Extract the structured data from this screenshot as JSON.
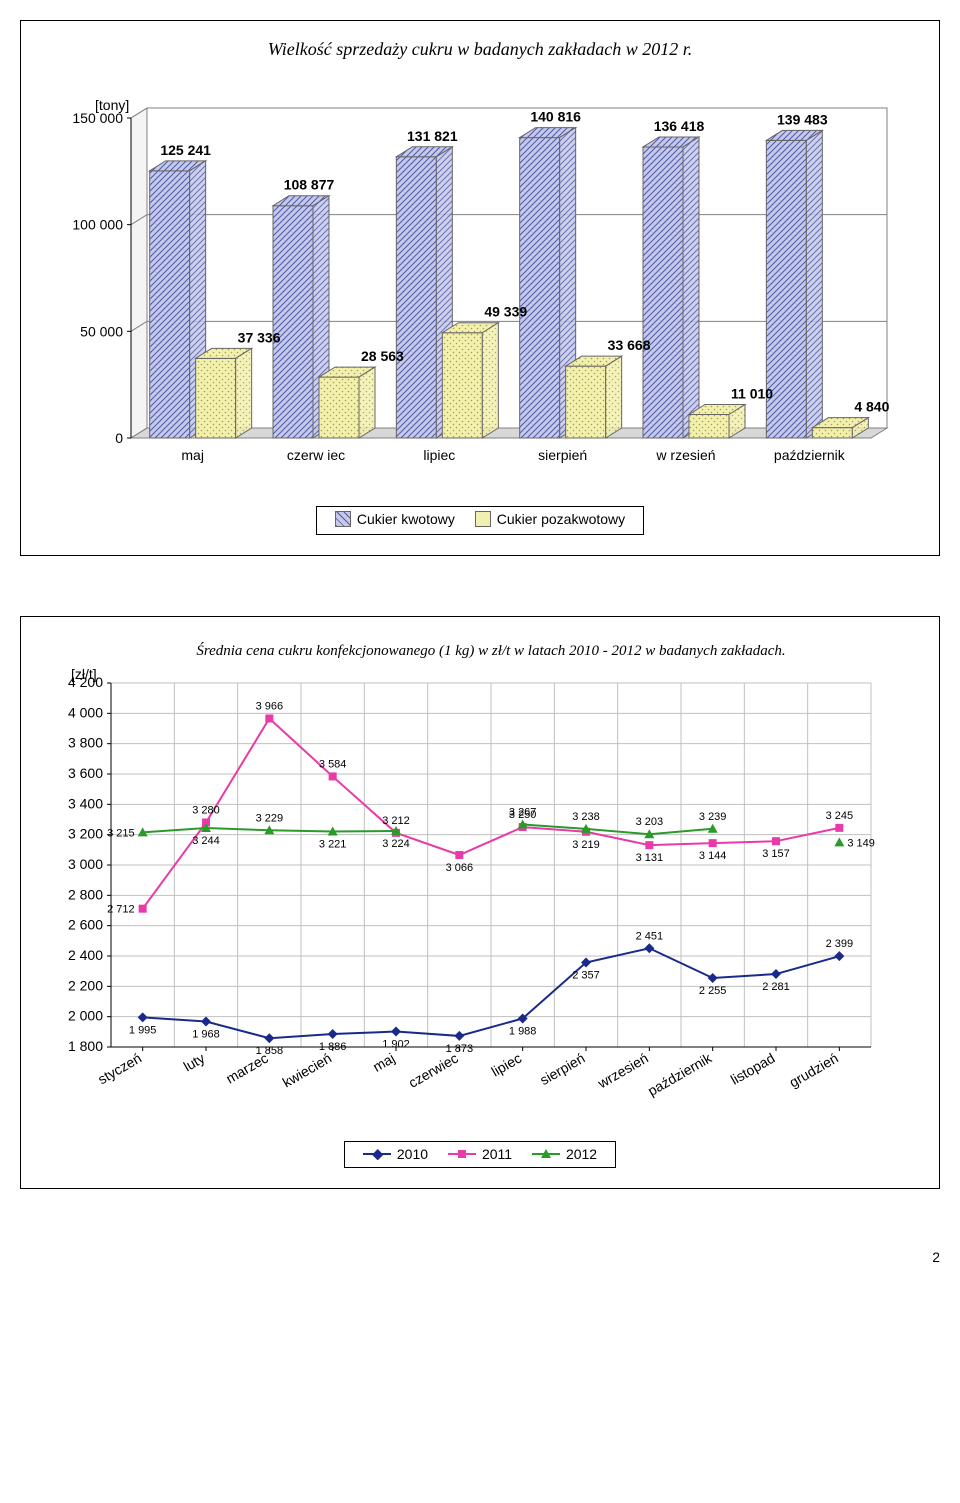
{
  "page_number": "2",
  "bar_chart": {
    "type": "bar-3d-grouped",
    "title": "Wielkość sprzedaży cukru w badanych zakładach w 2012 r.",
    "y_unit_label": "[tony]",
    "categories": [
      "maj",
      "czerw iec",
      "lipiec",
      "sierpień",
      "w rzesień",
      "październik"
    ],
    "series": [
      {
        "name": "Cukier kwotowy",
        "fill_pattern": "diag-hatch-blue",
        "base_color": "#c8c8e8",
        "hatch_color": "#4a5aa8",
        "values": [
          125241,
          108877,
          131821,
          140816,
          136418,
          139483
        ],
        "labels": [
          "125 241",
          "108 877",
          "131 821",
          "140 816",
          "136 418",
          "139 483"
        ]
      },
      {
        "name": "Cukier pozakwotowy",
        "fill_pattern": "dots-yellow",
        "base_color": "#f2f0b0",
        "hatch_color": "#b0a030",
        "values": [
          37336,
          28563,
          49339,
          33668,
          11010,
          4840
        ],
        "labels": [
          "37 336",
          "28 563",
          "49 339",
          "33 668",
          "11 010",
          "4 840"
        ]
      }
    ],
    "ylim": [
      0,
      150000
    ],
    "yticks": [
      0,
      50000,
      100000,
      150000
    ],
    "ytick_labels": [
      "0",
      "50 000",
      "100 000",
      "150 000"
    ],
    "floor_color": "#d8d8d8",
    "floor_border": "#808080",
    "grid_color": "#808080",
    "background_color": "#ffffff",
    "title_fontsize": 18,
    "label_fontsize": 14
  },
  "line_chart": {
    "type": "line",
    "title": "Średnia cena cukru konfekcjonowanego (1 kg) w zł/t w latach 2010 - 2012  w badanych zakładach.",
    "y_unit_label": "[zł/t]",
    "categories": [
      "styczeń",
      "luty",
      "marzec",
      "kwiecień",
      "maj",
      "czerwiec",
      "lipiec",
      "sierpień",
      "wrzesień",
      "październik",
      "listopad",
      "grudzień"
    ],
    "ylim": [
      1800,
      4200
    ],
    "ytick_step": 200,
    "yticks": [
      1800,
      2000,
      2200,
      2400,
      2600,
      2800,
      3000,
      3200,
      3400,
      3600,
      3800,
      4000,
      4200
    ],
    "ytick_labels": [
      "1 800",
      "2 000",
      "2 200",
      "2 400",
      "2 600",
      "2 800",
      "3 000",
      "3 200",
      "3 400",
      "3 600",
      "3 800",
      "4 000",
      "4 200"
    ],
    "series": [
      {
        "name": "2010",
        "color": "#1a2a8a",
        "marker": "diamond",
        "values": [
          1995,
          1968,
          1858,
          1886,
          1902,
          1873,
          1988,
          2357,
          2451,
          2255,
          2281,
          2399
        ],
        "labels": [
          "1 995",
          "1 968",
          "1 858",
          "1 886",
          "1 902",
          "1 873",
          "1 988",
          "2 357",
          "2 451",
          "2 255",
          "2 281",
          "2 399"
        ],
        "label_pos": [
          "below",
          "below",
          "below",
          "below",
          "below",
          "below",
          "below",
          "below",
          "above",
          "below",
          "below",
          "above"
        ]
      },
      {
        "name": "2011",
        "color": "#e83aa8",
        "marker": "square",
        "values": [
          2712,
          3280,
          3966,
          3584,
          3212,
          3066,
          3250,
          3219,
          3131,
          3144,
          3157,
          3245
        ],
        "labels": [
          "2 712",
          "3 280",
          "3 966",
          "3 584",
          "3 212",
          "3 066",
          "3 250",
          "3 219",
          "3 131",
          "3 144",
          "3 157",
          "3 245"
        ],
        "label_pos": [
          "left",
          "above",
          "above",
          "above",
          "above",
          "below",
          "above",
          "below",
          "below",
          "below",
          "below",
          "above"
        ]
      },
      {
        "name": "2012",
        "color": "#2a9a2a",
        "marker": "triangle",
        "values": [
          3215,
          3244,
          3229,
          3221,
          3224,
          null,
          3267,
          3238,
          3203,
          3239,
          null,
          3149
        ],
        "labels": [
          "3 215",
          "3 244",
          "3 229",
          "3 221",
          "3 224",
          "",
          "3 267",
          "3 238",
          "3 203",
          "3 239",
          "",
          "3 149"
        ],
        "label_pos": [
          "left",
          "below",
          "above",
          "below",
          "below",
          "",
          "above",
          "above",
          "above",
          "above",
          "",
          "right"
        ]
      }
    ],
    "grid_color": "#c0c0c0",
    "axis_color": "#000000",
    "background_color": "#ffffff",
    "title_fontsize": 15
  }
}
